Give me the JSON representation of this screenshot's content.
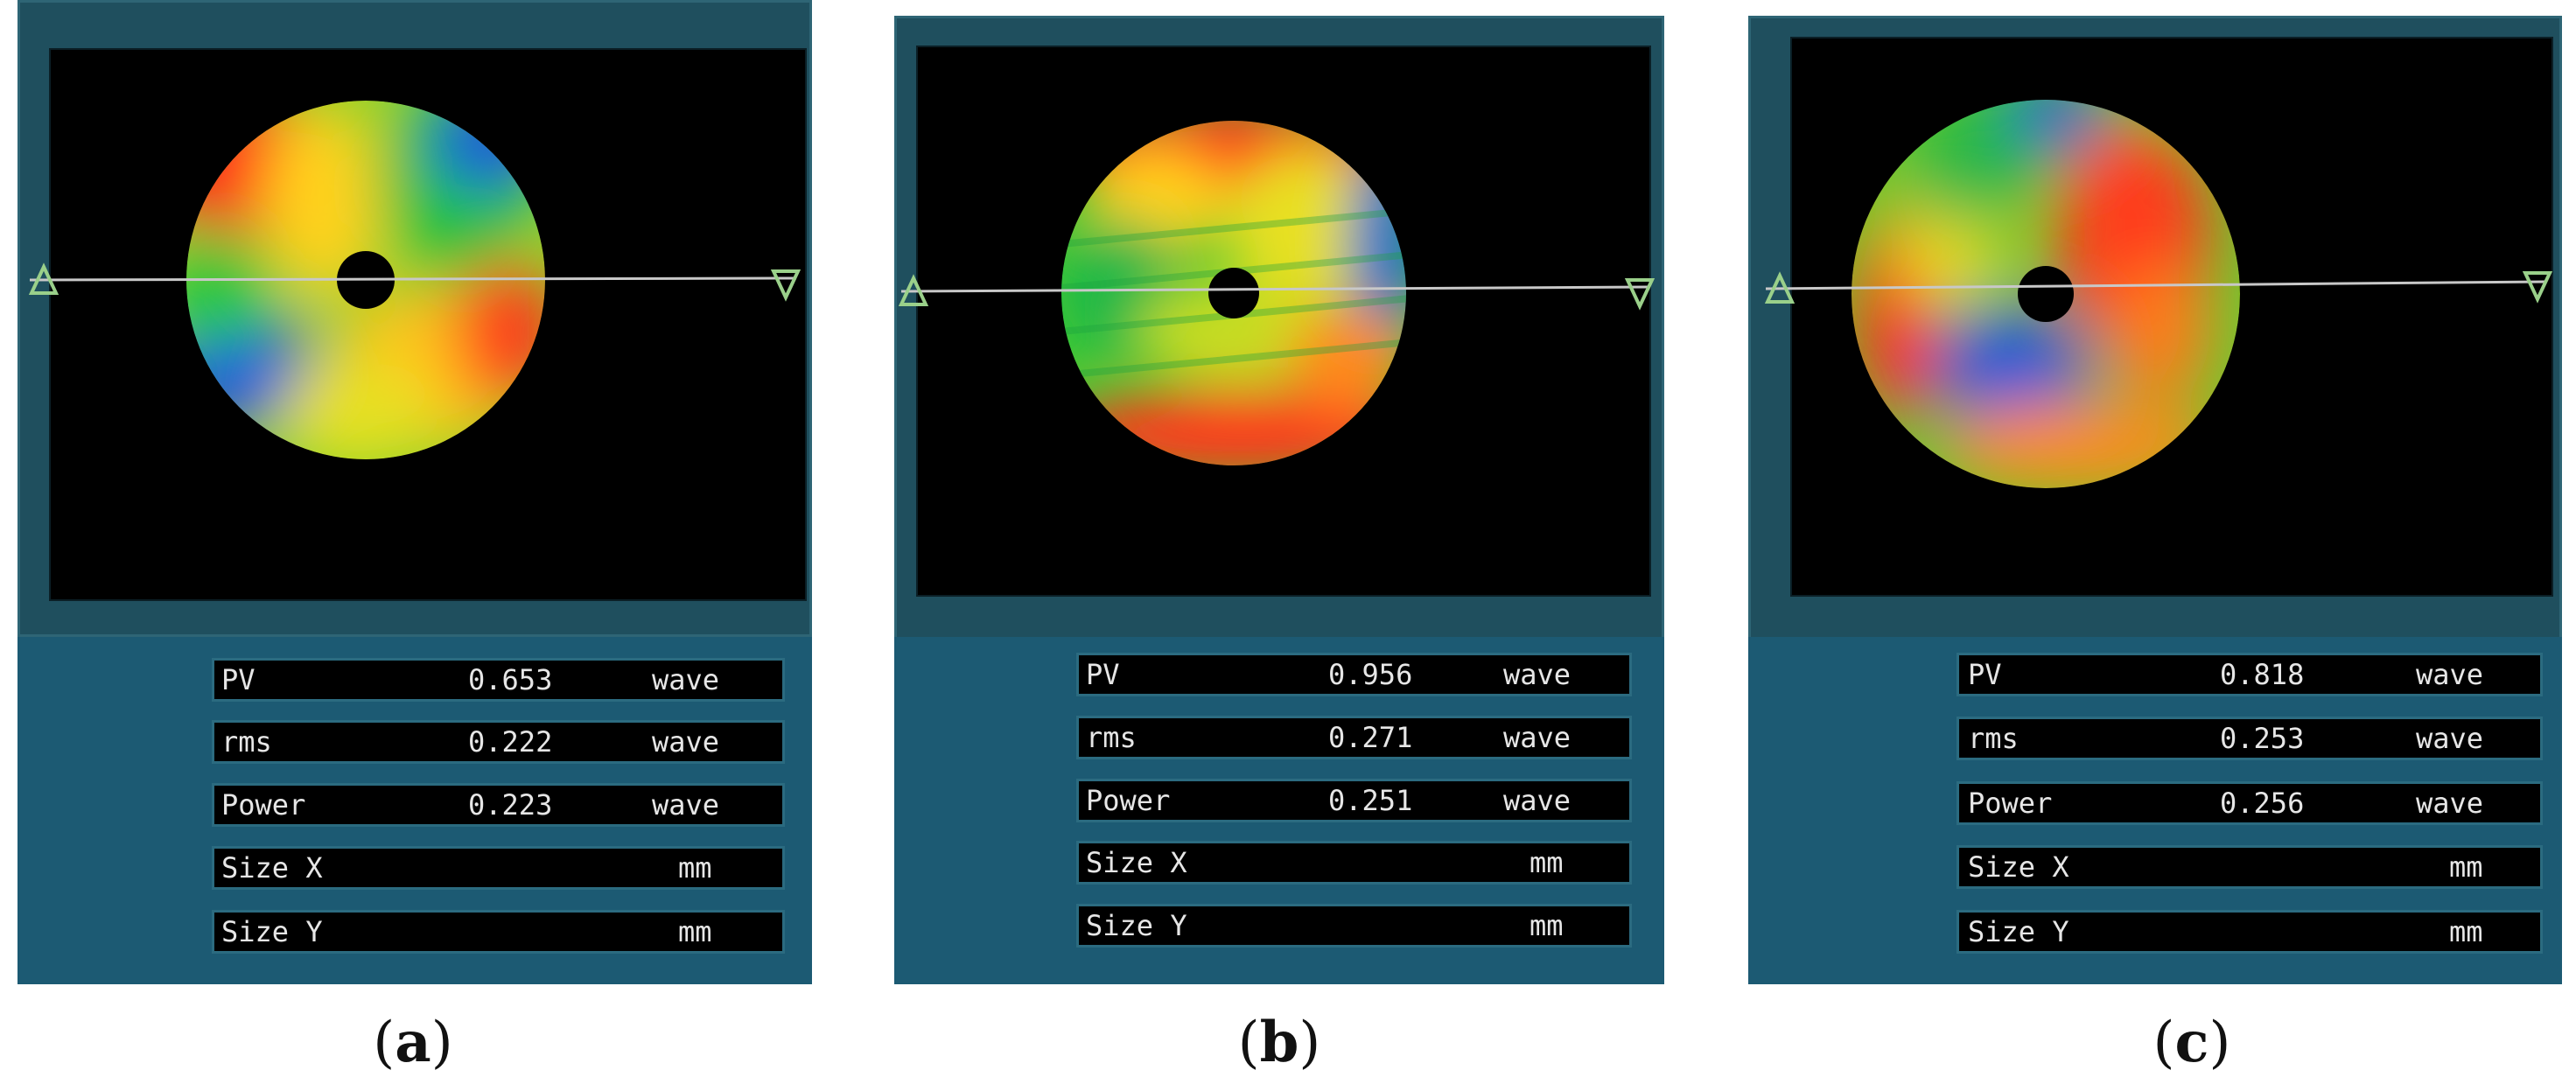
{
  "panels": [
    {
      "caption_open": "(",
      "caption_letter": "a",
      "caption_close": ")",
      "rows": [
        {
          "label": "PV",
          "value": "0.653",
          "unit": "wave"
        },
        {
          "label": "rms",
          "value": "0.222",
          "unit": "wave"
        },
        {
          "label": "Power",
          "value": "0.223",
          "unit": "wave"
        },
        {
          "label": "Size X",
          "value": "",
          "unit": "mm"
        },
        {
          "label": "Size Y",
          "value": "",
          "unit": "mm"
        }
      ]
    },
    {
      "caption_open": "(",
      "caption_letter": "b",
      "caption_close": ")",
      "rows": [
        {
          "label": "PV",
          "value": "0.956",
          "unit": "wave"
        },
        {
          "label": "rms",
          "value": "0.271",
          "unit": "wave"
        },
        {
          "label": "Power",
          "value": "0.251",
          "unit": "wave"
        },
        {
          "label": "Size X",
          "value": "",
          "unit": "mm"
        },
        {
          "label": "Size Y",
          "value": "",
          "unit": "mm"
        }
      ]
    },
    {
      "caption_open": "(",
      "caption_letter": "c",
      "caption_close": ")",
      "rows": [
        {
          "label": "PV",
          "value": "0.818",
          "unit": "wave"
        },
        {
          "label": "rms",
          "value": "0.253",
          "unit": "wave"
        },
        {
          "label": "Power",
          "value": "0.256",
          "unit": "wave"
        },
        {
          "label": "Size X",
          "value": "",
          "unit": "mm"
        },
        {
          "label": "Size Y",
          "value": "",
          "unit": "mm"
        }
      ]
    }
  ],
  "colors": {
    "frame": "#1f4f5e",
    "info_panel": "#1c5a73",
    "row_border": "#2b6b80",
    "text": "#e6e6e6",
    "screen": "#000000"
  }
}
